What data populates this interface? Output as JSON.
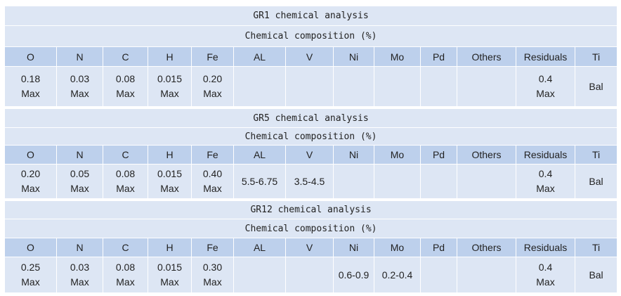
{
  "columns": [
    "O",
    "N",
    "C",
    "H",
    "Fe",
    "AL",
    "V",
    "Ni",
    "Mo",
    "Pd",
    "Others",
    "Residuals",
    "Ti"
  ],
  "sections": [
    {
      "title": "GR1 chemical analysis",
      "subtitle": "Chemical composition (%)",
      "values": [
        [
          "0.18",
          "Max"
        ],
        [
          "0.03",
          "Max"
        ],
        [
          "0.08",
          "Max"
        ],
        [
          "0.015",
          "Max"
        ],
        [
          "0.20",
          "Max"
        ],
        [],
        [],
        [],
        [],
        [],
        [],
        [
          "0.4",
          "Max"
        ],
        [
          "Bal"
        ]
      ]
    },
    {
      "title": "GR5 chemical analysis",
      "subtitle": "Chemical composition (%)",
      "values": [
        [
          "0.20",
          "Max"
        ],
        [
          "0.05",
          "Max"
        ],
        [
          "0.08",
          "Max"
        ],
        [
          "0.015",
          "Max"
        ],
        [
          "0.40",
          "Max"
        ],
        [
          "5.5-6.75"
        ],
        [
          "3.5-4.5"
        ],
        [],
        [],
        [],
        [],
        [
          "0.4",
          "Max"
        ],
        [
          "Bal"
        ]
      ]
    },
    {
      "title": "GR12 chemical analysis",
      "subtitle": "Chemical composition (%)",
      "values": [
        [
          "0.25",
          "Max"
        ],
        [
          "0.03",
          "Max"
        ],
        [
          "0.08",
          "Max"
        ],
        [
          "0.015",
          "Max"
        ],
        [
          "0.30",
          "Max"
        ],
        [],
        [],
        [
          "0.6-0.9"
        ],
        [
          "0.2-0.4"
        ],
        [],
        [],
        [
          "0.4",
          "Max"
        ],
        [
          "Bal"
        ]
      ]
    }
  ]
}
